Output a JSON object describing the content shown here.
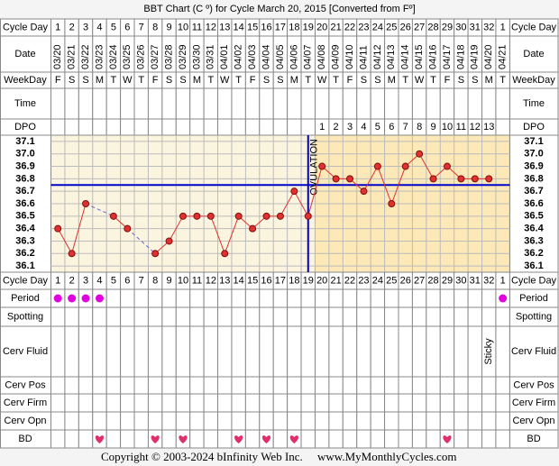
{
  "title": "BBT Chart (C º) for Cycle March 20, 2015  [Converted from Fº]",
  "labels": {
    "cycle_day": "Cycle Day",
    "date": "Date",
    "weekday": "WeekDay",
    "time": "Time",
    "dpo": "DPO",
    "period": "Period",
    "spotting": "Spotting",
    "cerv_fluid": "Cerv Fluid",
    "cerv_pos": "Cerv Pos",
    "cerv_firm": "Cerv Firm",
    "cerv_opn": "Cerv Opn",
    "bd": "BD"
  },
  "cycle_days": [
    1,
    2,
    3,
    4,
    5,
    6,
    7,
    8,
    9,
    10,
    11,
    12,
    13,
    14,
    15,
    16,
    17,
    18,
    19,
    20,
    21,
    22,
    23,
    24,
    25,
    26,
    27,
    28,
    29,
    30,
    31,
    32,
    1
  ],
  "dates": [
    "03/20",
    "03/21",
    "03/22",
    "03/23",
    "03/24",
    "03/25",
    "03/26",
    "03/27",
    "03/28",
    "03/29",
    "03/30",
    "03/31",
    "04/01",
    "04/02",
    "04/03",
    "04/04",
    "04/05",
    "04/06",
    "04/07",
    "04/08",
    "04/09",
    "04/10",
    "04/11",
    "04/12",
    "04/13",
    "04/14",
    "04/15",
    "04/16",
    "04/17",
    "04/18",
    "04/19",
    "04/20",
    "04/21"
  ],
  "weekdays": [
    "F",
    "S",
    "S",
    "M",
    "T",
    "W",
    "T",
    "F",
    "S",
    "S",
    "M",
    "T",
    "W",
    "T",
    "F",
    "S",
    "S",
    "M",
    "T",
    "W",
    "T",
    "F",
    "S",
    "S",
    "M",
    "T",
    "W",
    "T",
    "F",
    "S",
    "S",
    "M",
    "T"
  ],
  "dpo": [
    null,
    null,
    null,
    null,
    null,
    null,
    null,
    null,
    null,
    null,
    null,
    null,
    null,
    null,
    null,
    null,
    null,
    null,
    null,
    1,
    2,
    3,
    4,
    5,
    6,
    7,
    8,
    9,
    10,
    11,
    12,
    13,
    null
  ],
  "period": [
    true,
    true,
    true,
    true,
    false,
    false,
    false,
    false,
    false,
    false,
    false,
    false,
    false,
    false,
    false,
    false,
    false,
    false,
    false,
    false,
    false,
    false,
    false,
    false,
    false,
    false,
    false,
    false,
    false,
    false,
    false,
    false,
    true
  ],
  "cerv_fluid": [
    null,
    null,
    null,
    null,
    null,
    null,
    null,
    null,
    null,
    null,
    null,
    null,
    null,
    null,
    null,
    null,
    null,
    null,
    null,
    null,
    null,
    null,
    null,
    null,
    null,
    null,
    null,
    null,
    null,
    null,
    null,
    "Sticky",
    null
  ],
  "bd": [
    false,
    false,
    false,
    true,
    false,
    false,
    false,
    true,
    false,
    true,
    false,
    false,
    false,
    true,
    false,
    true,
    false,
    true,
    false,
    false,
    false,
    false,
    false,
    false,
    false,
    false,
    false,
    false,
    true,
    false,
    false,
    false,
    false
  ],
  "chart_data": {
    "type": "line",
    "color": "#e03030",
    "values": [
      36.4,
      36.2,
      36.6,
      null,
      36.5,
      36.4,
      null,
      36.2,
      36.3,
      36.5,
      36.5,
      36.5,
      36.2,
      36.5,
      36.4,
      36.5,
      36.5,
      36.7,
      36.5,
      36.9,
      36.8,
      36.8,
      36.7,
      36.9,
      36.6,
      36.9,
      37.0,
      36.8,
      36.9,
      36.8,
      36.8,
      36.8,
      null
    ],
    "ylim": [
      36.05,
      37.15
    ],
    "yticks": [
      37.1,
      {
        "value": 37.0,
        "label": "37.0"
      },
      36.9,
      36.8,
      36.7,
      36.6,
      36.5,
      36.4,
      36.3,
      36.2,
      36.1
    ],
    "coverline": 36.75,
    "coverline_color": "#0000cc",
    "ovulation_label": "OVULATION",
    "grid": true
  },
  "footer": {
    "copyright": "Copyright © 2003-2024 bInfinity Web Inc.",
    "site": "www.MyMonthlyCycles.com"
  }
}
